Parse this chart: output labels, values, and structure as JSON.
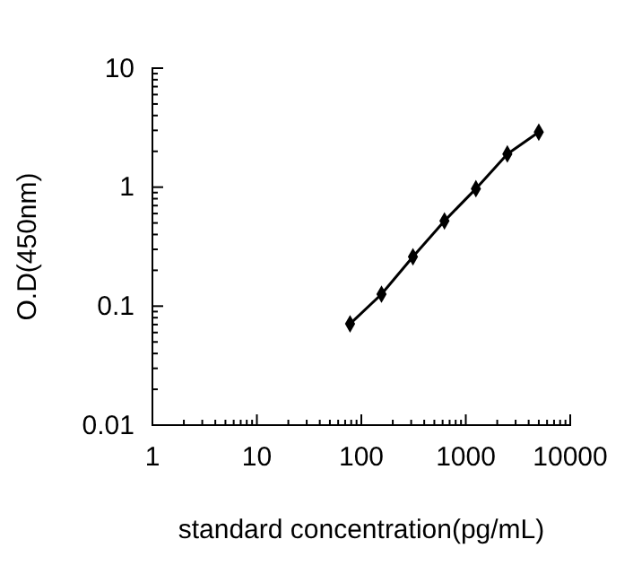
{
  "chart_data": {
    "type": "line",
    "xlabel": "standard concentration(pg/mL)",
    "ylabel": "O.D(450nm)",
    "log": "xy",
    "xlim": [
      1,
      10000
    ],
    "xticks": [
      1,
      10,
      100,
      1000,
      10000
    ],
    "ylim": [
      0.01,
      10
    ],
    "yticks": [
      0.01,
      0.1,
      1,
      10
    ],
    "marker": "diamond",
    "line_style": "solid",
    "x": [
      78,
      156,
      312,
      625,
      1250,
      2500,
      5000
    ],
    "series": [
      {
        "color": "#000000",
        "values": [
          0.071,
          0.126,
          0.26,
          0.52,
          0.97,
          1.9,
          2.9
        ]
      }
    ]
  }
}
